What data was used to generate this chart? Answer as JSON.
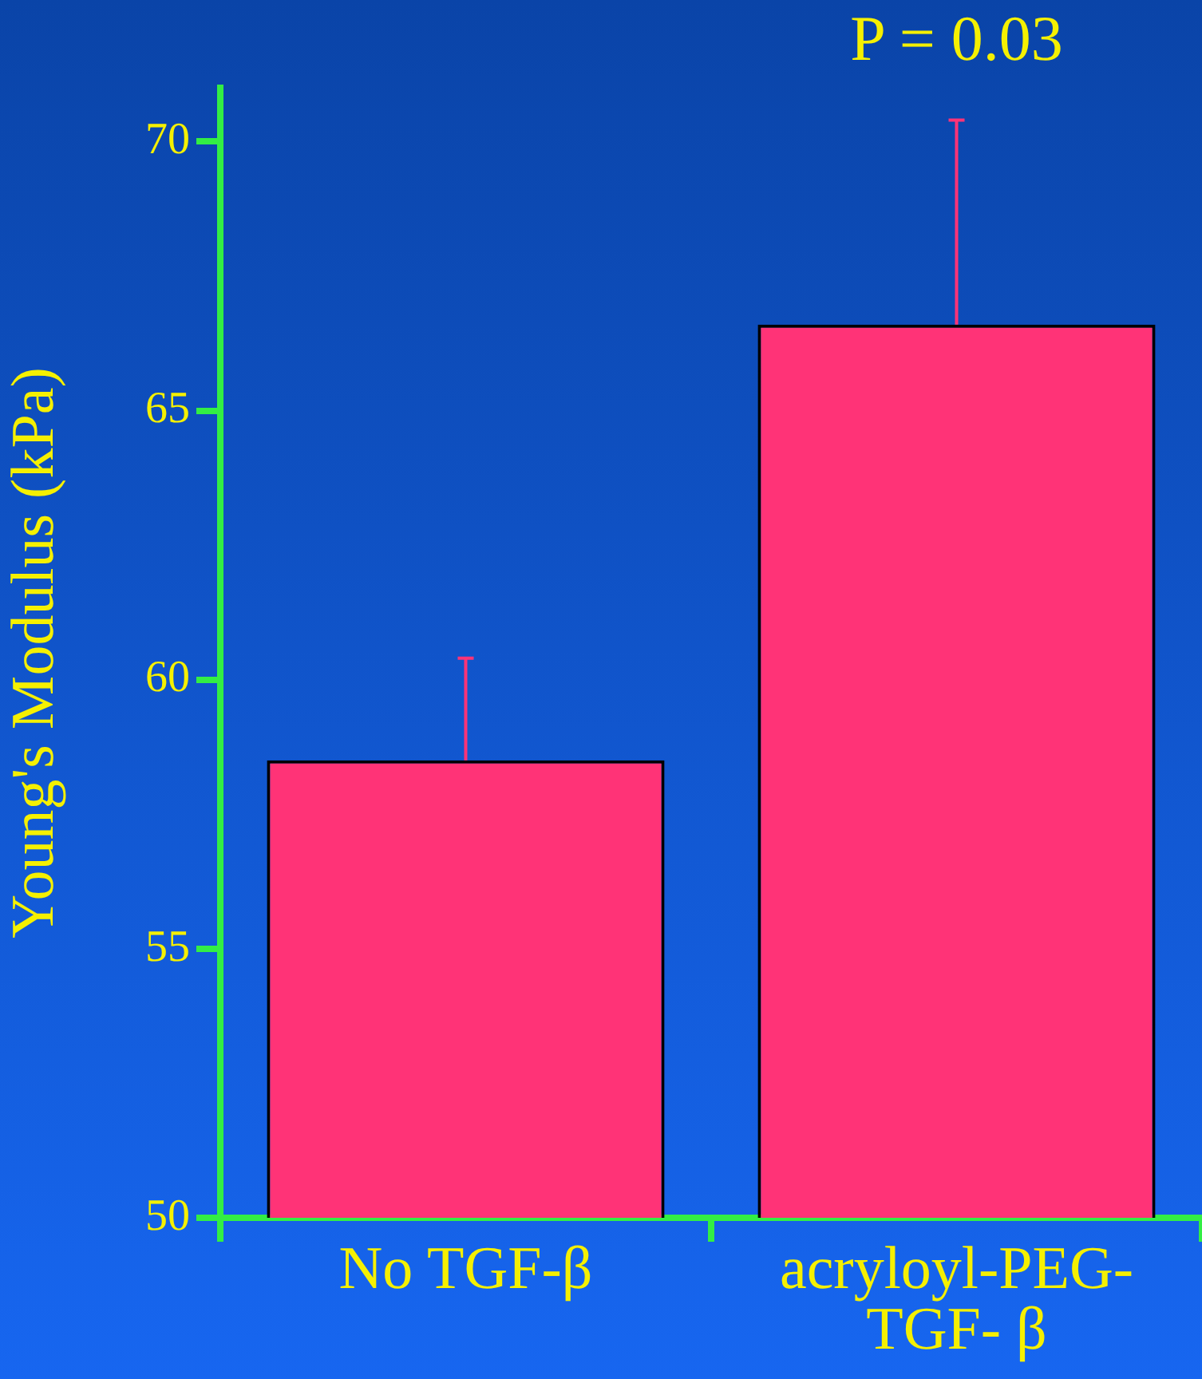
{
  "chart_data": {
    "type": "bar",
    "ylabel": "Young's Modulus (kPa)",
    "categories": [
      "No TGF-β",
      "acryloyl-PEG-TGF- β"
    ],
    "values": [
      58.5,
      66.6
    ],
    "errors": [
      [
        58.5,
        60.4
      ],
      [
        66.6,
        70.4
      ]
    ],
    "color": "#ff3377",
    "ylim": [
      50,
      71
    ],
    "yticks": [
      50,
      55,
      60,
      65,
      70
    ],
    "grid": false,
    "legend": false,
    "annotations": [
      {
        "text": "P = 0.03",
        "x": "acryloyl-PEG-TGF- β",
        "y": 70.4
      }
    ]
  }
}
